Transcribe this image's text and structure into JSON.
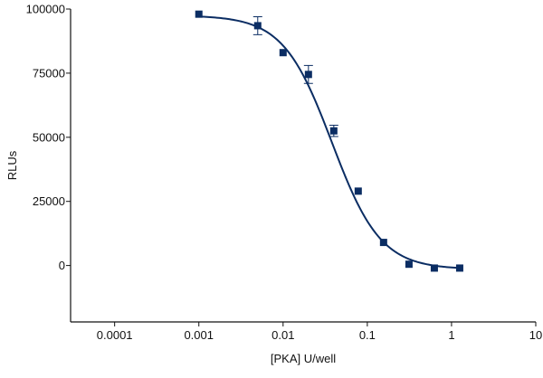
{
  "chart_data": {
    "type": "scatter",
    "xscale": "log",
    "xlabel": "[PKA] U/well",
    "ylabel": "RLUs",
    "xlim": [
      3e-05,
      10
    ],
    "ylim": [
      -22000,
      100000
    ],
    "xticks": [
      0.0001,
      0.001,
      0.01,
      0.1,
      1,
      10
    ],
    "xtick_labels": [
      "0.0001",
      "0.001",
      "0.01",
      "0.1",
      "1",
      "10"
    ],
    "yticks": [
      0,
      25000,
      50000,
      75000,
      100000
    ],
    "ytick_labels": [
      "0",
      "25000",
      "50000",
      "75000",
      "100000"
    ],
    "grid": false,
    "legend": "none",
    "series": [
      {
        "marker": "square",
        "color": "#0b2d63",
        "points": [
          {
            "x": 0.001,
            "y": 98000
          },
          {
            "x": 0.005,
            "y": 93500,
            "err": 3500
          },
          {
            "x": 0.01,
            "y": 83000
          },
          {
            "x": 0.02,
            "y": 74500,
            "err": 3500
          },
          {
            "x": 0.04,
            "y": 52500,
            "err": 2200
          },
          {
            "x": 0.078,
            "y": 29000
          },
          {
            "x": 0.156,
            "y": 9000
          },
          {
            "x": 0.3125,
            "y": 500
          },
          {
            "x": 0.625,
            "y": -1000
          },
          {
            "x": 1.25,
            "y": -1000
          }
        ]
      }
    ],
    "fit": {
      "type": "4PL",
      "color": "#0b2d63",
      "top": 97500,
      "bottom": -1500,
      "ec50": 0.038,
      "hill": 1.5,
      "x_range": [
        0.001,
        1.25
      ]
    }
  }
}
